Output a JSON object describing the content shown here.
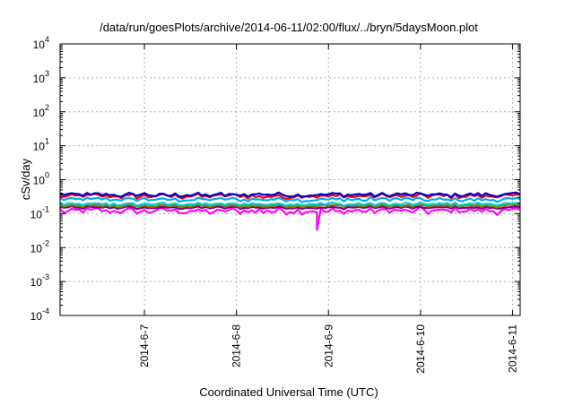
{
  "chart_data": {
    "type": "line",
    "title": "/data/run/goesPlots/archive/2014-06-11/02:00/flux/../bryn/5daysMoon.plot",
    "xlabel": "Coordinated Universal Time (UTC)",
    "ylabel": "cSv/day",
    "yscale": "log",
    "ylim": [
      0.0001,
      10000
    ],
    "xlim": [
      "2014-06-06T02:00",
      "2014-06-11T02:00"
    ],
    "grid": true,
    "y_ticks": [
      {
        "value": 0.0001,
        "base": "10",
        "exp": "-4"
      },
      {
        "value": 0.001,
        "base": "10",
        "exp": "-3"
      },
      {
        "value": 0.01,
        "base": "10",
        "exp": "-2"
      },
      {
        "value": 0.1,
        "base": "10",
        "exp": "-1"
      },
      {
        "value": 1,
        "base": "10",
        "exp": "0"
      },
      {
        "value": 10,
        "base": "10",
        "exp": "1"
      },
      {
        "value": 100,
        "base": "10",
        "exp": "2"
      },
      {
        "value": 1000,
        "base": "10",
        "exp": "3"
      },
      {
        "value": 10000,
        "base": "10",
        "exp": "4"
      }
    ],
    "x_ticks": [
      {
        "value": "2014-06-07T00:00",
        "label": "2014-6-7"
      },
      {
        "value": "2014-06-08T00:00",
        "label": "2014-6-8"
      },
      {
        "value": "2014-06-09T00:00",
        "label": "2014-6-9"
      },
      {
        "value": "2014-06-10T00:00",
        "label": "2014-6-10"
      },
      {
        "value": "2014-06-11T00:00",
        "label": "2014-6-11"
      }
    ],
    "series": [
      {
        "color": "#ff00ff",
        "level": 0.12,
        "spread": 0.3,
        "dip": {
          "at": "2014-06-08T21:00",
          "value": 0.033
        }
      },
      {
        "color": "#800080",
        "level": 0.15,
        "spread": 0.12
      },
      {
        "color": "#808000",
        "level": 0.17,
        "spread": 0.12
      },
      {
        "color": "#00cccc",
        "level": 0.19,
        "spread": 0.14
      },
      {
        "color": "#00aaff",
        "level": 0.26,
        "spread": 0.2
      },
      {
        "color": "#ff0000",
        "level": 0.33,
        "spread": 0.22
      },
      {
        "color": "#0000cc",
        "level": 0.36,
        "spread": 0.2
      }
    ]
  }
}
